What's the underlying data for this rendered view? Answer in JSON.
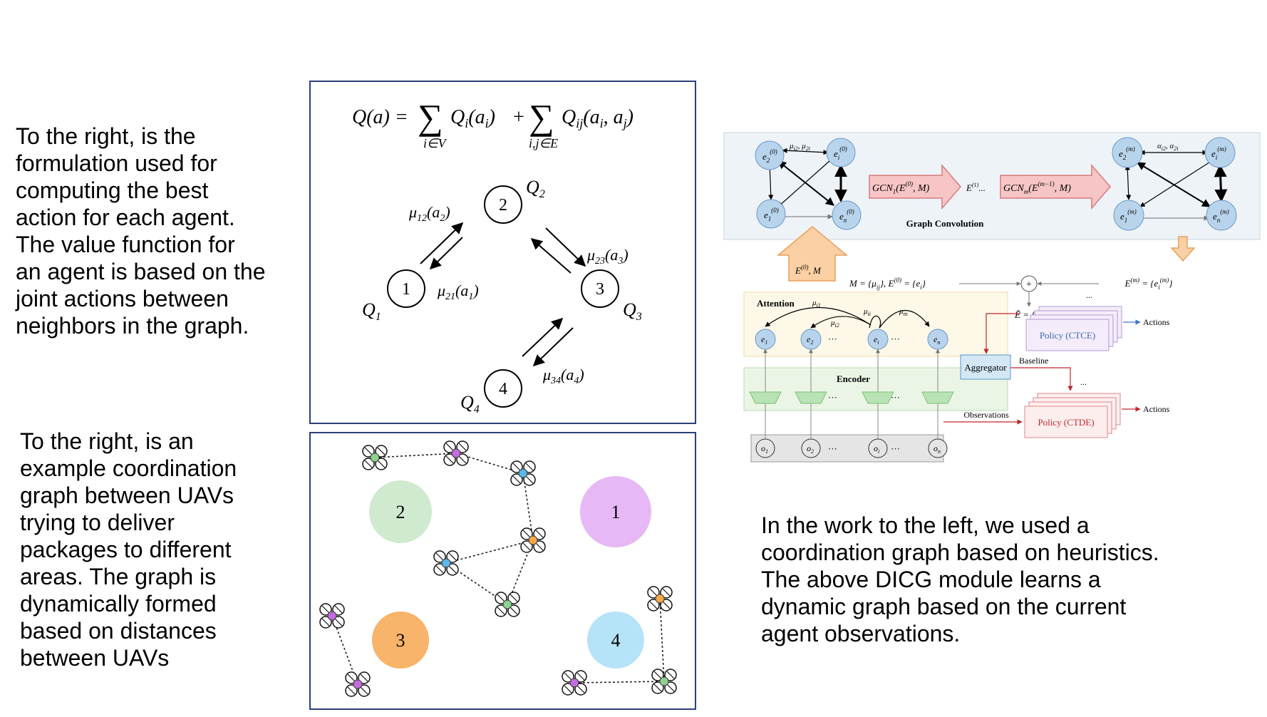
{
  "left_text": {
    "top_lines": [
      "To the right, is the",
      "formulation used for",
      "computing the best",
      "action for each agent.",
      "The value function for",
      "an agent is based on the",
      "joint actions between",
      "neighbors in the graph."
    ],
    "bottom_lines": [
      "To the right, is an",
      "example coordination",
      "graph between UAVs",
      "trying to deliver",
      "packages to different",
      "areas.  The graph is",
      "dynamically formed",
      "based on distances",
      "between UAVs"
    ]
  },
  "right_text": {
    "lines": [
      "In the work to the left, we used a",
      "coordination graph based on heuristics.",
      "The above DICG module learns a",
      "dynamic graph based on the current",
      "agent observations."
    ]
  },
  "formula_panel": {
    "equation": {
      "lhs": "Q(a) =",
      "sum1": "∑",
      "sub1": "i∈V",
      "term1": "Q",
      "term1_sub": "i",
      "term1_arg": "(a",
      "term1_arg_sub": "i",
      "term1_close": ")",
      "plus": "+",
      "sum2": "∑",
      "sub2": "i,j∈E",
      "term2": "Q",
      "term2_sub": "ij",
      "term2_arg": "(a",
      "term2_arg_sub1": "i",
      "term2_mid": ", a",
      "term2_arg_sub2": "j",
      "term2_close": ")"
    },
    "nodes": [
      "1",
      "2",
      "3",
      "4"
    ],
    "q_labels": {
      "q1": "Q",
      "q1_sub": "1",
      "q2": "Q",
      "q2_sub": "2",
      "q3": "Q",
      "q3_sub": "3",
      "q4": "Q",
      "q4_sub": "4"
    },
    "edge_labels": {
      "mu12": "μ",
      "mu12_sub": "12",
      "mu12_arg": "(a",
      "mu12_arg_sub": "2",
      "mu12_close": ")",
      "mu21": "μ",
      "mu21_sub": "21",
      "mu21_arg": "(a",
      "mu21_arg_sub": "1",
      "mu21_close": ")",
      "mu23": "μ",
      "mu23_sub": "23",
      "mu23_arg": "(a",
      "mu23_arg_sub": "3",
      "mu23_close": ")",
      "mu34": "μ",
      "mu34_sub": "34",
      "mu34_arg": "(a",
      "mu34_arg_sub": "4",
      "mu34_close": ")"
    }
  },
  "uav_panel": {
    "zones": [
      {
        "label": "1",
        "color": "#e6b8f5"
      },
      {
        "label": "2",
        "color": "#cfeacf"
      },
      {
        "label": "3",
        "color": "#f7b46a"
      },
      {
        "label": "4",
        "color": "#b5e3f7"
      }
    ],
    "uav_colors": {
      "green": "#8fd18f",
      "purple": "#c56be0",
      "blue": "#5bb8e8",
      "orange": "#f5a84a"
    }
  },
  "dicg": {
    "graph_conv_label": "Graph Convolution",
    "gcn1": "GCN",
    "gcn1_sub": "1",
    "gcn1_args": "(E",
    "gcn1_sup": "(0)",
    "gcn1_tail": ", M)",
    "gcnm": "GCN",
    "gcnm_sub": "m",
    "gcnm_args": "(E",
    "gcnm_sup": "(m−1)",
    "gcnm_tail": ", M)",
    "e1_mid": "E",
    "e1_mid_sup": "(1)",
    "e1_dots": "...",
    "left_nodes": {
      "e2": "e",
      "e2_sub": "2",
      "e2_sup": "(0)",
      "ei": "e",
      "ei_sub": "i",
      "ei_sup": "(0)",
      "e1": "e",
      "e1_sub": "1",
      "e1_sup": "(0)",
      "en": "e",
      "en_sub": "n",
      "en_sup": "(0)"
    },
    "right_nodes": {
      "e2": "e",
      "e2_sub": "2",
      "e2_sup": "(m)",
      "ei": "e",
      "ei_sub": "i",
      "ei_sup": "(m)",
      "e1": "e",
      "e1_sub": "1",
      "e1_sup": "(m)",
      "en": "e",
      "en_sub": "n",
      "en_sup": "(m)"
    },
    "left_edge_label": "μ",
    "left_edge_sub1": "i2",
    "left_edge_mid": ", μ",
    "left_edge_sub2": "2i",
    "right_edge_label": "α",
    "right_edge_sub1": "i2",
    "right_edge_mid": ", α",
    "right_edge_sub2": "2i",
    "up_arrow_label": "E",
    "up_arrow_sup": "(0)",
    "up_arrow_tail": ", M",
    "m_def": "M = {μ",
    "m_def_sub": "ij",
    "m_def_mid": "}, E",
    "m_def_sup": "(0)",
    "m_def_tail": " = {e",
    "m_def_sub2": "i",
    "m_def_close": "}",
    "em_def": "E",
    "em_def_sup": "(m)",
    "em_def_mid": " = {e",
    "em_def_sub": "i",
    "em_def_sup2": "(m)",
    "em_def_close": "}",
    "plus": "+",
    "etilde": "Ẽ = {ẽ",
    "etilde_sub": "i",
    "etilde_close": "}",
    "attention_label": "Attention",
    "encoder_label": "Encoder",
    "mu_i1": "μ",
    "mu_i1_sub": "i1",
    "mu_i2": "μ",
    "mu_i2_sub": "i2",
    "mu_ii": "μ",
    "mu_ii_sub": "ii",
    "mu_in": "μ",
    "mu_in_sub": "in",
    "attn_nodes": [
      {
        "base": "e",
        "sub": "1"
      },
      {
        "base": "e",
        "sub": "2"
      },
      {
        "base": "e",
        "sub": "i"
      },
      {
        "base": "e",
        "sub": "n"
      }
    ],
    "obs_nodes": [
      {
        "base": "o",
        "sub": "1"
      },
      {
        "base": "o",
        "sub": "2"
      },
      {
        "base": "o",
        "sub": "i"
      },
      {
        "base": "o",
        "sub": "n"
      }
    ],
    "dots": "···",
    "policy_ctce": "Policy (CTCE)",
    "policy_ctde": "Policy (CTDE)",
    "actions_top": "Actions",
    "actions_bottom": "Actions",
    "aggregator": "Aggregator",
    "baseline": "Baseline",
    "observations": "Observations",
    "stack_dots": "..."
  }
}
